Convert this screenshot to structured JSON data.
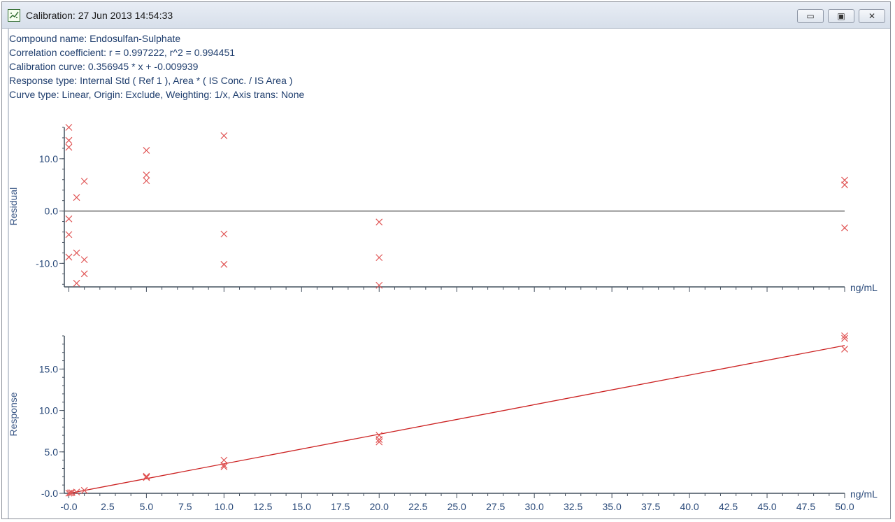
{
  "window": {
    "title": "Calibration: 27 Jun 2013 14:54:33",
    "icon": "calibration-chart-icon",
    "buttons": {
      "minimize": "▭",
      "restore": "▣",
      "close": "✕"
    }
  },
  "info_lines": [
    "Compound name: Endosulfan-Sulphate",
    "Correlation coefficient: r = 0.997222, r^2 = 0.994451",
    "Calibration curve: 0.356945 * x + -0.009939",
    "Response type: Internal Std ( Ref 1 ), Area * ( IS Conc. / IS Area )",
    "Curve type: Linear, Origin: Exclude, Weighting: 1/x, Axis trans: None"
  ],
  "colors": {
    "marker": "#e05555",
    "fit_line": "#cc2222",
    "axis": "#44505f",
    "zero_line": "#666666",
    "text": "#1f3e6e"
  },
  "chart_data": [
    {
      "type": "scatter",
      "name": "residual",
      "ylabel": "Residual",
      "xunit": "ng/mL",
      "xlim": [
        -0.2,
        50.0
      ],
      "ylim": [
        -14.5,
        16.0
      ],
      "yticks": [
        {
          "value": 10.0,
          "label": "10.0"
        },
        {
          "value": 0.0,
          "label": "0.0"
        },
        {
          "value": -10.0,
          "label": "-10.0"
        }
      ],
      "zero_line": true,
      "points": [
        {
          "x": 0.0,
          "y": 16.0
        },
        {
          "x": 0.0,
          "y": 13.5
        },
        {
          "x": 0.0,
          "y": 12.2
        },
        {
          "x": 0.0,
          "y": -1.5
        },
        {
          "x": 0.0,
          "y": -4.5
        },
        {
          "x": 0.0,
          "y": -8.8
        },
        {
          "x": 0.5,
          "y": 2.6
        },
        {
          "x": 0.5,
          "y": -8.0
        },
        {
          "x": 0.5,
          "y": -13.8
        },
        {
          "x": 1.0,
          "y": 5.7
        },
        {
          "x": 1.0,
          "y": -9.3
        },
        {
          "x": 1.0,
          "y": -12.0
        },
        {
          "x": 5.0,
          "y": 11.6
        },
        {
          "x": 5.0,
          "y": 6.9
        },
        {
          "x": 5.0,
          "y": 5.8
        },
        {
          "x": 10.0,
          "y": 14.4
        },
        {
          "x": 10.0,
          "y": -4.4
        },
        {
          "x": 10.0,
          "y": -10.2
        },
        {
          "x": 20.0,
          "y": -2.1
        },
        {
          "x": 20.0,
          "y": -8.9
        },
        {
          "x": 20.0,
          "y": -14.2
        },
        {
          "x": 50.0,
          "y": 5.9
        },
        {
          "x": 50.0,
          "y": 5.0
        },
        {
          "x": 50.0,
          "y": -3.2
        }
      ]
    },
    {
      "type": "scatter",
      "name": "response",
      "ylabel": "Response",
      "xunit": "ng/mL",
      "xlim": [
        -0.2,
        50.0
      ],
      "ylim": [
        0.0,
        19.0
      ],
      "xticks": [
        {
          "value": 0.0,
          "label": "-0.0"
        },
        {
          "value": 2.5,
          "label": "2.5"
        },
        {
          "value": 5.0,
          "label": "5.0"
        },
        {
          "value": 7.5,
          "label": "7.5"
        },
        {
          "value": 10.0,
          "label": "10.0"
        },
        {
          "value": 12.5,
          "label": "12.5"
        },
        {
          "value": 15.0,
          "label": "15.0"
        },
        {
          "value": 17.5,
          "label": "17.5"
        },
        {
          "value": 20.0,
          "label": "20.0"
        },
        {
          "value": 22.5,
          "label": "22.5"
        },
        {
          "value": 25.0,
          "label": "25.0"
        },
        {
          "value": 27.5,
          "label": "27.5"
        },
        {
          "value": 30.0,
          "label": "30.0"
        },
        {
          "value": 32.5,
          "label": "32.5"
        },
        {
          "value": 35.0,
          "label": "35.0"
        },
        {
          "value": 37.5,
          "label": "37.5"
        },
        {
          "value": 40.0,
          "label": "40.0"
        },
        {
          "value": 42.5,
          "label": "42.5"
        },
        {
          "value": 45.0,
          "label": "45.0"
        },
        {
          "value": 47.5,
          "label": "47.5"
        },
        {
          "value": 50.0,
          "label": "50.0"
        }
      ],
      "yticks": [
        {
          "value": 15.0,
          "label": "15.0"
        },
        {
          "value": 10.0,
          "label": "10.0"
        },
        {
          "value": 5.0,
          "label": "5.0"
        },
        {
          "value": 0.0,
          "label": "-0.0"
        }
      ],
      "fit": {
        "slope": 0.356945,
        "intercept": -0.009939,
        "x_range": [
          0.0,
          50.0
        ]
      },
      "points": [
        {
          "x": 0.0,
          "y": 0.02
        },
        {
          "x": 0.1,
          "y": 0.05
        },
        {
          "x": 0.2,
          "y": 0.08
        },
        {
          "x": 0.5,
          "y": 0.15
        },
        {
          "x": 1.0,
          "y": 0.35
        },
        {
          "x": 5.0,
          "y": 2.05
        },
        {
          "x": 5.0,
          "y": 1.95
        },
        {
          "x": 5.0,
          "y": 1.9
        },
        {
          "x": 10.0,
          "y": 4.0
        },
        {
          "x": 10.0,
          "y": 3.4
        },
        {
          "x": 10.0,
          "y": 3.2
        },
        {
          "x": 20.0,
          "y": 7.0
        },
        {
          "x": 20.0,
          "y": 6.5
        },
        {
          "x": 20.0,
          "y": 6.2
        },
        {
          "x": 50.0,
          "y": 19.0
        },
        {
          "x": 50.0,
          "y": 18.7
        },
        {
          "x": 50.0,
          "y": 17.4
        }
      ]
    }
  ]
}
